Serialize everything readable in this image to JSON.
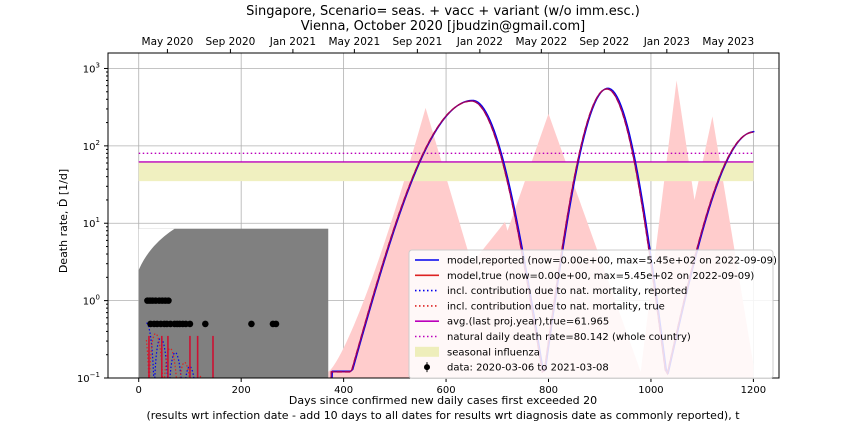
{
  "chart_data": {
    "type": "line",
    "title_line1": "Singapore, Scenario= seas. + vacc + variant (w/o imm.esc.)",
    "title_line2": "Vienna, October 2020 [jbudzin@gmail.com]",
    "xlabel_line1": "Days since confirmed new daily cases first exceeded 20",
    "xlabel_line2": "(results wrt infection date - add 10 days to all dates for results wrt diagnosis date as commonly reported), t",
    "ylabel": "Death rate, Ḋ [1/d]",
    "xlim": [
      -60,
      1250
    ],
    "ylim_log10": [
      -1,
      3.2
    ],
    "yscale": "log",
    "grid": true,
    "legend_position": "lower-right",
    "x_ticks": [
      0,
      200,
      400,
      600,
      800,
      1000,
      1200
    ],
    "y_ticks": [
      {
        "exp": -1,
        "label": "10",
        "sup": "−1"
      },
      {
        "exp": 0,
        "label": "10",
        "sup": "0"
      },
      {
        "exp": 1,
        "label": "10",
        "sup": "1"
      },
      {
        "exp": 2,
        "label": "10",
        "sup": "2"
      },
      {
        "exp": 3,
        "label": "10",
        "sup": "3"
      }
    ],
    "top_axis": [
      {
        "day": 56,
        "label": "May 2020"
      },
      {
        "day": 179,
        "label": "Sep 2020"
      },
      {
        "day": 301,
        "label": "Jan 2021"
      },
      {
        "day": 421,
        "label": "May 2021"
      },
      {
        "day": 544,
        "label": "Sep 2021"
      },
      {
        "day": 666,
        "label": "Jan 2022"
      },
      {
        "day": 786,
        "label": "May 2022"
      },
      {
        "day": 909,
        "label": "Sep 2022"
      },
      {
        "day": 1031,
        "label": "Jan 2023"
      },
      {
        "day": 1151,
        "label": "May 2023"
      }
    ],
    "legend": [
      {
        "key": "model_reported",
        "label": "model,reported (now=0.00e+00, max=5.45e+02 on 2022-09-09)",
        "color": "#0000ee",
        "style": "solid"
      },
      {
        "key": "model_true",
        "label": "model,true (now=0.00e+00, max=5.45e+02 on 2022-09-09)",
        "color": "#dd2222",
        "style": "solid"
      },
      {
        "key": "nat_reported",
        "label": "incl. contribution due to nat. mortality, reported",
        "color": "#0000ee",
        "style": "dotted"
      },
      {
        "key": "nat_true",
        "label": "incl. contribution due to nat. mortality, true",
        "color": "#dd2222",
        "style": "dotted"
      },
      {
        "key": "avg_line",
        "label": "avg.(last proj.year),true=61.965",
        "color": "#bb00bb",
        "style": "solid"
      },
      {
        "key": "natural_line",
        "label": "natural daily death rate=80.142 (whole country)",
        "color": "#bb00bb",
        "style": "dotted"
      },
      {
        "key": "seasonal",
        "label": "seasonal influenza",
        "color": "#eeeebb",
        "style": "patch"
      },
      {
        "key": "data",
        "label": "data: 2020-03-06 to 2021-03-08",
        "color": "#000000",
        "style": "errorbar"
      }
    ],
    "avg_true": 61.965,
    "natural_rate": 80.142,
    "seasonal_band": [
      35,
      62
    ],
    "model_peaks": [
      {
        "day": 650,
        "value": 380
      },
      {
        "day": 914,
        "value": 545
      }
    ],
    "model_trough_days": [
      415,
      790,
      1030
    ],
    "model_early_spikes_days": [
      20,
      45,
      57,
      100,
      115,
      145
    ],
    "seasonal_envelope": {
      "description": "pink shaded range of seasonal model variants",
      "peaks": [
        {
          "day": 560,
          "value": 310
        },
        {
          "day": 800,
          "value": 260
        },
        {
          "day": 1050,
          "value": 700
        },
        {
          "day": 1120,
          "value": 240
        }
      ]
    },
    "data_bar_top": 8.5,
    "data_bar_range": [
      0,
      370
    ],
    "data_points": [
      {
        "day": 17,
        "value": 1.0
      },
      {
        "day": 22,
        "value": 1.0
      },
      {
        "day": 27,
        "value": 1.0
      },
      {
        "day": 33,
        "value": 1.0
      },
      {
        "day": 40,
        "value": 1.0
      },
      {
        "day": 46,
        "value": 1.0
      },
      {
        "day": 52,
        "value": 1.0
      },
      {
        "day": 58,
        "value": 1.0
      },
      {
        "day": 23,
        "value": 0.5
      },
      {
        "day": 30,
        "value": 0.5
      },
      {
        "day": 36,
        "value": 0.5
      },
      {
        "day": 43,
        "value": 0.5
      },
      {
        "day": 50,
        "value": 0.5
      },
      {
        "day": 55,
        "value": 0.5
      },
      {
        "day": 62,
        "value": 0.5
      },
      {
        "day": 70,
        "value": 0.5
      },
      {
        "day": 75,
        "value": 0.5
      },
      {
        "day": 80,
        "value": 0.5
      },
      {
        "day": 86,
        "value": 0.5
      },
      {
        "day": 92,
        "value": 0.5
      },
      {
        "day": 100,
        "value": 0.5
      },
      {
        "day": 130,
        "value": 0.5
      },
      {
        "day": 220,
        "value": 0.5
      },
      {
        "day": 262,
        "value": 0.5
      },
      {
        "day": 268,
        "value": 0.5
      }
    ]
  }
}
